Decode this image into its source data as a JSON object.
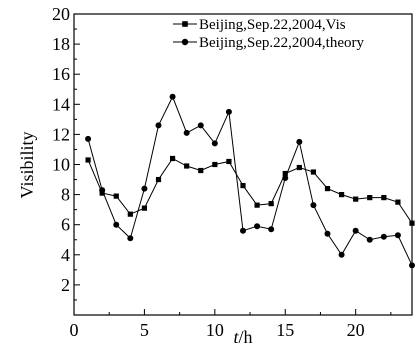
{
  "chart_data": {
    "type": "line",
    "xlabel_italic": "t",
    "xlabel_unit": "/h",
    "ylabel": "Visibility",
    "xlim": [
      0,
      24
    ],
    "ylim": [
      0,
      20
    ],
    "x_ticks": [
      0,
      5,
      10,
      15,
      20
    ],
    "y_ticks": [
      2,
      4,
      6,
      8,
      10,
      12,
      14,
      16,
      18,
      20
    ],
    "grid": false,
    "legend_position": "top-right",
    "x": [
      1,
      2,
      3,
      4,
      5,
      6,
      7,
      8,
      9,
      10,
      11,
      12,
      13,
      14,
      15,
      16,
      17,
      18,
      19,
      20,
      21,
      22,
      23,
      24
    ],
    "series": [
      {
        "name": "Beijing,Sep.22,2004,Vis",
        "marker": "square",
        "color": "#000000",
        "values": [
          10.3,
          8.1,
          7.9,
          6.7,
          7.1,
          9.0,
          10.4,
          9.9,
          9.6,
          10.0,
          10.2,
          8.6,
          7.3,
          7.4,
          9.4,
          9.8,
          9.5,
          8.4,
          8.0,
          7.7,
          7.8,
          7.8,
          7.5,
          6.1
        ]
      },
      {
        "name": "Beijing,Sep.22,2004,theory",
        "marker": "circle",
        "color": "#000000",
        "values": [
          11.7,
          8.3,
          6.0,
          5.1,
          8.4,
          12.6,
          14.5,
          12.1,
          12.6,
          11.4,
          13.5,
          5.6,
          5.9,
          5.7,
          9.1,
          11.5,
          7.3,
          5.4,
          4.0,
          5.6,
          5.0,
          5.2,
          5.3,
          3.3
        ]
      }
    ]
  }
}
